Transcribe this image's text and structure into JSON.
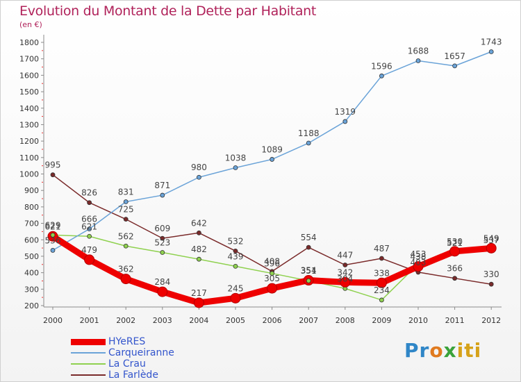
{
  "header": {
    "title": "Evolution du Montant de la Dette par Habitant",
    "unit": "(en €)"
  },
  "logo_text": "Proxiti",
  "chart_data": {
    "type": "line",
    "title": "Evolution du Montant de la Dette par Habitant",
    "subtitle": "(en €)",
    "xlabel": "",
    "ylabel": "",
    "ylim": [
      200,
      1800
    ],
    "yticks": [
      200,
      300,
      400,
      500,
      600,
      700,
      800,
      900,
      1000,
      1100,
      1200,
      1300,
      1400,
      1500,
      1600,
      1700,
      1800
    ],
    "x": [
      "2000",
      "2001",
      "2002",
      "2003",
      "2004",
      "2005",
      "2006",
      "2007",
      "2008",
      "2009",
      "2010",
      "2011",
      "2012"
    ],
    "grid": false,
    "legend": "bottom-left",
    "series": [
      {
        "name": "HYeRES",
        "color": "#ee0000",
        "values": [
          621,
          479,
          362,
          284,
          217,
          245,
          305,
          354,
          342,
          338,
          438,
          530,
          549
        ]
      },
      {
        "name": "Carqueiranne",
        "color": "#6aa3d8",
        "values": [
          536,
          666,
          831,
          871,
          980,
          1038,
          1089,
          1188,
          1319,
          1596,
          1688,
          1657,
          1743
        ]
      },
      {
        "name": "La Crau",
        "color": "#8fd14f",
        "values": [
          629,
          621,
          562,
          523,
          482,
          439,
          396,
          351,
          304,
          234,
          453,
          521,
          537
        ]
      },
      {
        "name": "La Farlède",
        "color": "#7a2a2a",
        "values": [
          995,
          826,
          725,
          609,
          642,
          532,
          408,
          554,
          447,
          487,
          403,
          366,
          330
        ]
      }
    ]
  }
}
